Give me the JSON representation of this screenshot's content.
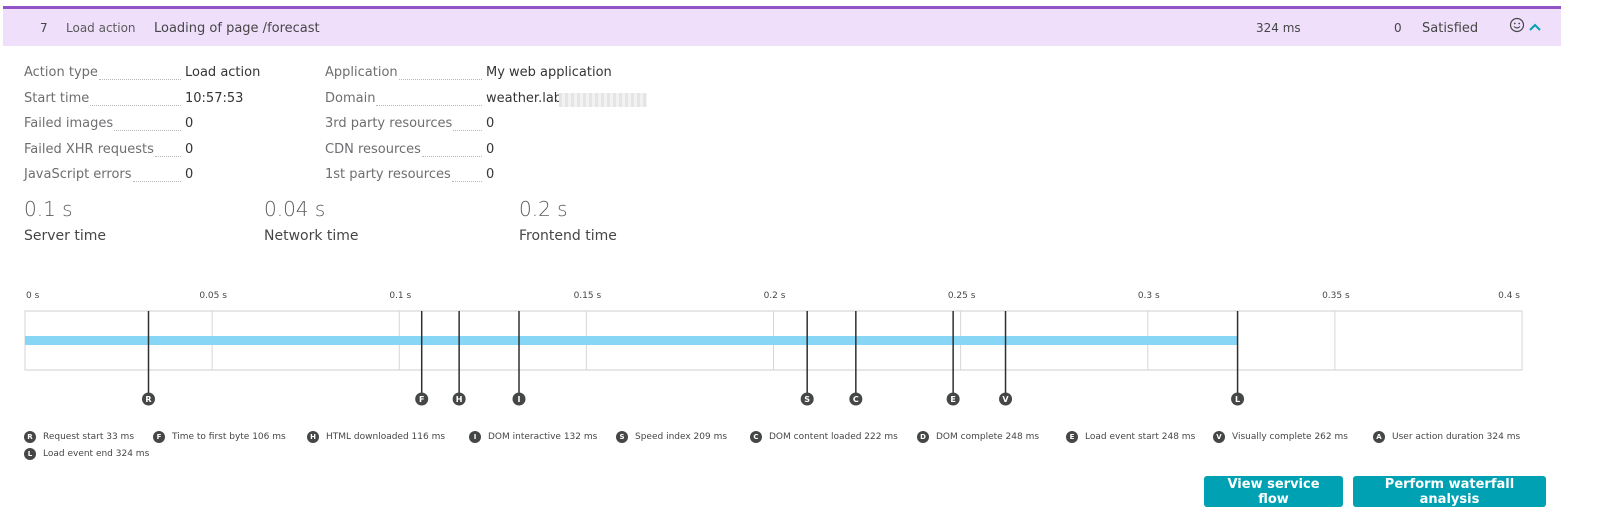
{
  "header": {
    "index": "7",
    "action_type": "Load action",
    "action_name": "Loading of page /forecast",
    "duration": "324 ms",
    "errors": "0",
    "apdex": "Satisfied"
  },
  "properties_left": [
    {
      "label": "Action type",
      "value": "Load action"
    },
    {
      "label": "Start time",
      "value": "10:57:53"
    },
    {
      "label": "Failed images",
      "value": "0"
    },
    {
      "label": "Failed XHR requests",
      "value": "0"
    },
    {
      "label": "JavaScript errors",
      "value": "0"
    }
  ],
  "properties_right": [
    {
      "label": "Application",
      "value": "My web application"
    },
    {
      "label": "Domain",
      "value": "weather.lab"
    },
    {
      "label": "3rd party resources",
      "value": "0"
    },
    {
      "label": "CDN resources",
      "value": "0"
    },
    {
      "label": "1st party resources",
      "value": "0"
    }
  ],
  "metrics": [
    {
      "value": "0.1 s",
      "label": "Server time"
    },
    {
      "value": "0.04 s",
      "label": "Network time"
    },
    {
      "value": "0.2 s",
      "label": "Frontend time"
    }
  ],
  "timeline": {
    "ticks": [
      "0 s",
      "0.05 s",
      "0.1 s",
      "0.15 s",
      "0.2 s",
      "0.25 s",
      "0.3 s",
      "0.35 s",
      "0.4 s"
    ],
    "tick_values_ms": [
      0,
      50,
      100,
      150,
      200,
      250,
      300,
      350,
      400
    ],
    "max_ms": 400,
    "bar_end_ms": 324,
    "bar_color": "#88d6f5",
    "markers": [
      {
        "letter": "R",
        "ms": 33
      },
      {
        "letter": "F",
        "ms": 106
      },
      {
        "letter": "H",
        "ms": 116
      },
      {
        "letter": "I",
        "ms": 132
      },
      {
        "letter": "S",
        "ms": 209
      },
      {
        "letter": "C",
        "ms": 222
      },
      {
        "letter": "E",
        "ms": 248
      },
      {
        "letter": "V",
        "ms": 262
      },
      {
        "letter": "L",
        "ms": 324
      }
    ]
  },
  "legend": [
    {
      "letter": "R",
      "text": "Request start 33 ms"
    },
    {
      "letter": "F",
      "text": "Time to first byte 106 ms"
    },
    {
      "letter": "H",
      "text": "HTML downloaded 116 ms"
    },
    {
      "letter": "I",
      "text": "DOM interactive 132 ms"
    },
    {
      "letter": "S",
      "text": "Speed index 209 ms"
    },
    {
      "letter": "C",
      "text": "DOM content loaded 222 ms"
    },
    {
      "letter": "D",
      "text": "DOM complete 248 ms"
    },
    {
      "letter": "E",
      "text": "Load event start 248 ms"
    },
    {
      "letter": "V",
      "text": "Visually complete 262 ms"
    },
    {
      "letter": "A",
      "text": "User action duration 324 ms"
    },
    {
      "letter": "L",
      "text": "Load event end 324 ms"
    }
  ],
  "buttons": {
    "service_flow": "View service flow",
    "waterfall": "Perform waterfall analysis"
  },
  "colors": {
    "header_bg": "#efdffb",
    "header_border": "#9154c6",
    "button": "#00a1b2",
    "chevron": "#00a1b2"
  }
}
